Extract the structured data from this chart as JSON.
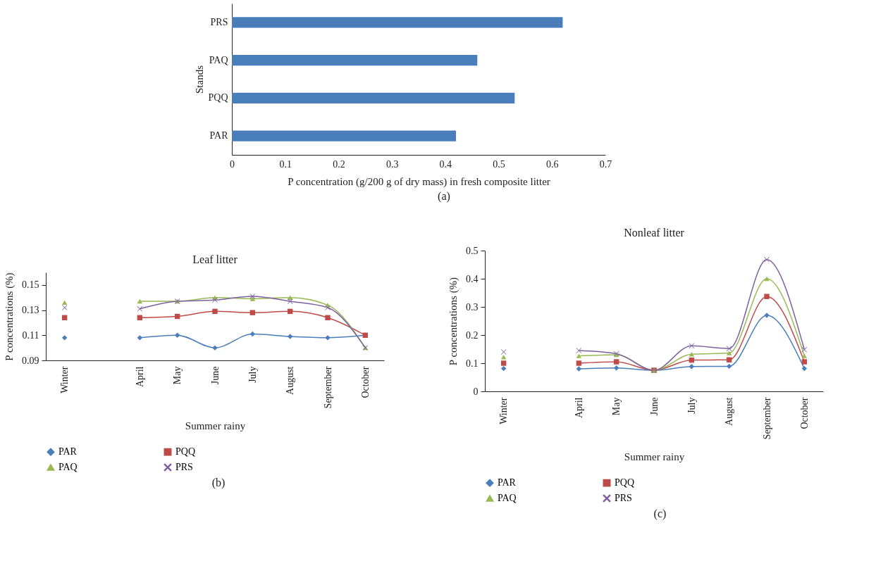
{
  "chart_data": [
    {
      "type": "bar",
      "orientation": "horizontal",
      "categories": [
        "PRS",
        "PAQ",
        "PQQ",
        "PAR"
      ],
      "values": [
        0.62,
        0.46,
        0.53,
        0.42
      ],
      "color": "#4a7ebb",
      "xlim": [
        0,
        0.7
      ],
      "xticks": [
        0,
        0.1,
        0.2,
        0.3,
        0.4,
        0.5,
        0.6,
        0.7
      ],
      "xlabel": "P concentration (g/200 g of dry mass) in fresh composite litter",
      "ylabel": "Stands",
      "annotations": [
        "(a)"
      ]
    },
    {
      "type": "line",
      "title": "Leaf litter",
      "xlabel": "Summer rainy",
      "ylabel": "P concentrations (%)",
      "categories": [
        "Winter",
        null,
        "April",
        "May",
        "June",
        "July",
        "August",
        "September",
        "October"
      ],
      "series": [
        {
          "name": "PAR",
          "color": "#4a7ebb",
          "marker": "diamond",
          "values": [
            0.108,
            null,
            0.108,
            0.11,
            0.1,
            0.111,
            0.109,
            0.108,
            0.11
          ]
        },
        {
          "name": "PQQ",
          "color": "#be4b48",
          "marker": "square",
          "values": [
            0.124,
            null,
            0.124,
            0.125,
            0.129,
            0.128,
            0.129,
            0.124,
            0.11
          ]
        },
        {
          "name": "PAQ",
          "color": "#98b954",
          "marker": "triangle",
          "values": [
            0.136,
            null,
            0.137,
            0.137,
            0.14,
            0.139,
            0.14,
            0.134,
            0.1
          ]
        },
        {
          "name": "PRS",
          "color": "#7d60a0",
          "marker": "cross",
          "values": [
            0.132,
            null,
            0.131,
            0.137,
            0.138,
            0.141,
            0.137,
            0.132,
            0.1
          ]
        }
      ],
      "ylim": [
        0.09,
        0.16
      ],
      "yticks": [
        0.09,
        0.11,
        0.13,
        0.15
      ],
      "legend": "bottom",
      "annotations": [
        "(b)"
      ]
    },
    {
      "type": "line",
      "title": "Nonleaf litter",
      "xlabel": "Summer rainy",
      "ylabel": "P concentrations (%)",
      "categories": [
        "Winter",
        null,
        "April",
        "May",
        "June",
        "July",
        "August",
        "September",
        "October"
      ],
      "series": [
        {
          "name": "PAR",
          "color": "#4a7ebb",
          "marker": "diamond",
          "values": [
            0.081,
            null,
            0.08,
            0.083,
            0.075,
            0.088,
            0.089,
            0.27,
            0.081
          ]
        },
        {
          "name": "PQQ",
          "color": "#be4b48",
          "marker": "square",
          "values": [
            0.1,
            null,
            0.1,
            0.105,
            0.075,
            0.111,
            0.112,
            0.337,
            0.105
          ]
        },
        {
          "name": "PAQ",
          "color": "#98b954",
          "marker": "triangle",
          "values": [
            0.122,
            null,
            0.126,
            0.13,
            0.075,
            0.132,
            0.136,
            0.4,
            0.126
          ]
        },
        {
          "name": "PRS",
          "color": "#7d60a0",
          "marker": "cross",
          "values": [
            0.14,
            null,
            0.145,
            0.134,
            0.075,
            0.162,
            0.152,
            0.468,
            0.148
          ]
        }
      ],
      "ylim": [
        0,
        0.5
      ],
      "yticks": [
        0,
        0.1,
        0.2,
        0.3,
        0.4,
        0.5
      ],
      "legend": "bottom",
      "annotations": [
        "(c)"
      ]
    }
  ]
}
